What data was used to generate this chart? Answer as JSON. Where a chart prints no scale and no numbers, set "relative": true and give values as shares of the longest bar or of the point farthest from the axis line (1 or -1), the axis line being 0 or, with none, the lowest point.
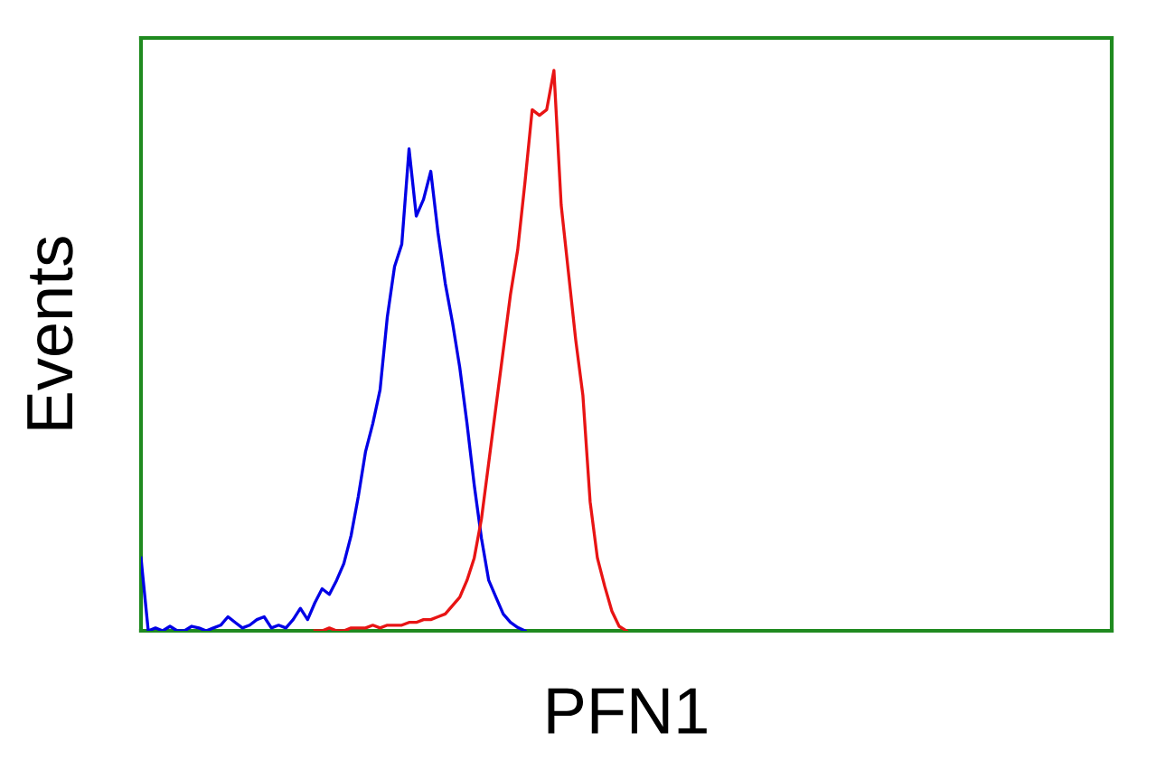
{
  "chart_data": {
    "type": "line",
    "xlabel": "PFN1",
    "ylabel": "Events",
    "relative": true,
    "categories": [
      null,
      null,
      null,
      null,
      null,
      null,
      null,
      null,
      null,
      null,
      null,
      null,
      null,
      null,
      null,
      null,
      null,
      null,
      null,
      null,
      null,
      null,
      null,
      null,
      null,
      null,
      null,
      null,
      null,
      null,
      null,
      null,
      null,
      null,
      null,
      null,
      null,
      null,
      null,
      null,
      null,
      null,
      null,
      null,
      null,
      null,
      null,
      null,
      null,
      null,
      null,
      null,
      null,
      null,
      null,
      null,
      null,
      null,
      null,
      null,
      null,
      null,
      null,
      null,
      null,
      null,
      null,
      null,
      null,
      null,
      null,
      null,
      null,
      null,
      null,
      null,
      null,
      null,
      null,
      null,
      null,
      null,
      null,
      null,
      null,
      null,
      null,
      null,
      null,
      null,
      null,
      null,
      null,
      null,
      null,
      null,
      null,
      null,
      null,
      null,
      null,
      null,
      null,
      null,
      null,
      null,
      null,
      null,
      null,
      null,
      null,
      null,
      null,
      null,
      null,
      null,
      null,
      null,
      null,
      null,
      null,
      null,
      null,
      null,
      null,
      null,
      null,
      null,
      null,
      null,
      null,
      null,
      null,
      null,
      null
    ],
    "series": [
      {
        "color": "#0000e6",
        "values": [
          0.13,
          0,
          0.005,
          0,
          0.008,
          0,
          0,
          0.008,
          0.005,
          0,
          0.005,
          0.01,
          0.025,
          0.015,
          0.005,
          0.01,
          0.02,
          0.025,
          0.005,
          0.01,
          0.005,
          0.02,
          0.04,
          0.02,
          0.05,
          0.075,
          0.065,
          0.09,
          0.12,
          0.17,
          0.24,
          0.32,
          0.37,
          0.43,
          0.56,
          0.65,
          0.69,
          0.86,
          0.74,
          0.77,
          0.82,
          0.71,
          0.62,
          0.55,
          0.47,
          0.37,
          0.26,
          0.165,
          0.09,
          0.06,
          0.03,
          0.015,
          0.006,
          0,
          null,
          null,
          null,
          null,
          null,
          null,
          null,
          null,
          null,
          null,
          null,
          null,
          null,
          null,
          null,
          null,
          null,
          null,
          null,
          null,
          null,
          null,
          null,
          null,
          null,
          null,
          null,
          null,
          null,
          null,
          null,
          null,
          null,
          null,
          null,
          null,
          null,
          null,
          null,
          null,
          null,
          null,
          null,
          null,
          null,
          null,
          null,
          null,
          null,
          null,
          null,
          null,
          null,
          null,
          null,
          null,
          null,
          null,
          null,
          null,
          null,
          null,
          null,
          null,
          null,
          null,
          null,
          null,
          null,
          null,
          null,
          null,
          null,
          null,
          null,
          null,
          null,
          null,
          null,
          null,
          null
        ]
      },
      {
        "color": "#e81414",
        "values": [
          null,
          null,
          null,
          null,
          null,
          null,
          null,
          null,
          null,
          null,
          null,
          null,
          null,
          null,
          null,
          null,
          null,
          null,
          null,
          null,
          null,
          null,
          null,
          null,
          0,
          0,
          0.005,
          0,
          0,
          0.005,
          0.005,
          0.005,
          0.01,
          0.005,
          0.01,
          0.01,
          0.01,
          0.015,
          0.015,
          0.02,
          0.02,
          0.025,
          0.03,
          0.045,
          0.06,
          0.09,
          0.13,
          0.2,
          0.3,
          0.4,
          0.5,
          0.6,
          0.68,
          0.8,
          0.93,
          0.92,
          0.93,
          1.0,
          0.76,
          0.64,
          0.52,
          0.42,
          0.23,
          0.13,
          0.08,
          0.035,
          0.008,
          0,
          null,
          null,
          null,
          null,
          null,
          null,
          null,
          null,
          null,
          null,
          null,
          null,
          null,
          null,
          null,
          null,
          null,
          null,
          null,
          null,
          null,
          null,
          null,
          null,
          null,
          null,
          null,
          null,
          null,
          null,
          null,
          null,
          null,
          null,
          null,
          null,
          null,
          null,
          null,
          null,
          null,
          null,
          null,
          null,
          null,
          null,
          null,
          null,
          null,
          null,
          null,
          null,
          null,
          null,
          null,
          null,
          null,
          null,
          null,
          null,
          null,
          null,
          null,
          null,
          null,
          null,
          null
        ]
      }
    ]
  }
}
